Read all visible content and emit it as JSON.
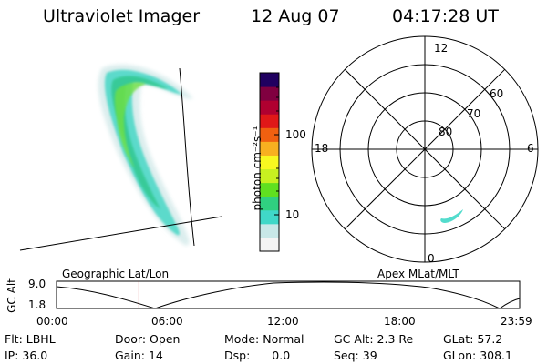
{
  "header": {
    "title": "Ultraviolet Imager",
    "date": "12 Aug 07",
    "time": "04:17:28 UT"
  },
  "colorbar": {
    "unit_label": "photon cm⁻²s⁻¹",
    "tick_100": "100",
    "tick_10": "10",
    "scale": "log",
    "colors": [
      "#f4f4f4",
      "#c8e8e8",
      "#40d8c8",
      "#30d080",
      "#60e020",
      "#c8f020",
      "#f8f820",
      "#f8b020",
      "#f06010",
      "#e01818",
      "#b00030",
      "#800040",
      "#200060"
    ]
  },
  "polar_plot": {
    "lat_labels": [
      "80",
      "70",
      "60"
    ],
    "mlt_labels": {
      "top": "12",
      "left": "18",
      "right": "6",
      "bottom": "0"
    }
  },
  "timeline": {
    "ylabel": "GC Alt",
    "y_ticks": [
      "9.0",
      "1.8"
    ],
    "left_title": "Geographic Lat/Lon",
    "right_title": "Apex MLat/MLT",
    "x_ticks": [
      "00:00",
      "06:00",
      "12:00",
      "18:00",
      "23:59"
    ],
    "current_time_fraction": 0.178,
    "marker_color": "#c01010"
  },
  "info": {
    "filter_label": "Flt:",
    "filter": "LBHL",
    "ip_label": "IP:",
    "ip": "36.0",
    "door_label": "Door:",
    "door": "Open",
    "gain_label": "Gain:",
    "gain": "14",
    "mode_label": "Mode:",
    "mode": "Normal",
    "dsp_label": "Dsp:",
    "dsp": "0.0",
    "gcalt_label": "GC Alt:",
    "gcalt": "2.3 Re",
    "seq_label": "Seq:",
    "seq": "39",
    "glat_label": "GLat:",
    "glat": "57.2",
    "glon_label": "GLon:",
    "glon": "308.1"
  }
}
